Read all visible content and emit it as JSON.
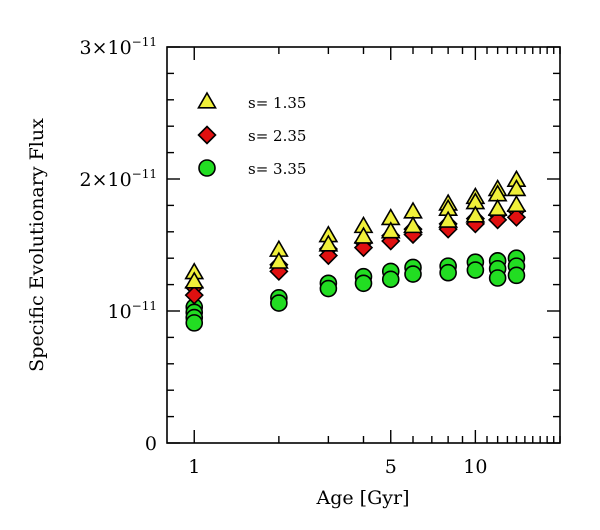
{
  "chart_data": {
    "type": "scatter",
    "xlabel": "Age [Gyr]",
    "ylabel": "Specific Evolutionary Flux",
    "x_scale": "log",
    "xlim": [
      0.8,
      20
    ],
    "ylim": [
      0,
      3e-11
    ],
    "grid": false,
    "legend_position": "top-left",
    "xticks": [
      {
        "value": 1,
        "label": "1"
      },
      {
        "value": 5,
        "label": "5"
      },
      {
        "value": 10,
        "label": "10"
      }
    ],
    "yticks": [
      {
        "value": 0,
        "mantissa": "0",
        "exponent": ""
      },
      {
        "value": 1e-11,
        "mantissa": "10",
        "exponent": "−11"
      },
      {
        "value": 2e-11,
        "mantissa": "2×10",
        "exponent": "−11"
      },
      {
        "value": 3e-11,
        "mantissa": "3×10",
        "exponent": "−11"
      }
    ],
    "series": [
      {
        "name": "s= 1.35",
        "marker": "triangle",
        "color": "#f0f03a",
        "points": [
          [
            1,
            1.29e-11
          ],
          [
            1,
            1.22e-11
          ],
          [
            2,
            1.46e-11
          ],
          [
            2,
            1.37e-11
          ],
          [
            3,
            1.57e-11
          ],
          [
            3,
            1.5e-11
          ],
          [
            4,
            1.64e-11
          ],
          [
            4,
            1.56e-11
          ],
          [
            5,
            1.7e-11
          ],
          [
            5,
            1.6e-11
          ],
          [
            6,
            1.75e-11
          ],
          [
            6,
            1.64e-11
          ],
          [
            8,
            1.81e-11
          ],
          [
            8,
            1.77e-11
          ],
          [
            8,
            1.68e-11
          ],
          [
            10,
            1.86e-11
          ],
          [
            10,
            1.82e-11
          ],
          [
            10,
            1.72e-11
          ],
          [
            12,
            1.92e-11
          ],
          [
            12,
            1.88e-11
          ],
          [
            12,
            1.77e-11
          ],
          [
            14,
            1.99e-11
          ],
          [
            14,
            1.92e-11
          ],
          [
            14,
            1.8e-11
          ]
        ]
      },
      {
        "name": "s= 2.35",
        "marker": "diamond",
        "color": "#e01010",
        "points": [
          [
            1,
            1.18e-11
          ],
          [
            1,
            1.12e-11
          ],
          [
            2,
            1.35e-11
          ],
          [
            2,
            1.3e-11
          ],
          [
            3,
            1.47e-11
          ],
          [
            3,
            1.42e-11
          ],
          [
            4,
            1.52e-11
          ],
          [
            4,
            1.48e-11
          ],
          [
            5,
            1.57e-11
          ],
          [
            5,
            1.53e-11
          ],
          [
            6,
            1.62e-11
          ],
          [
            6,
            1.58e-11
          ],
          [
            8,
            1.66e-11
          ],
          [
            8,
            1.62e-11
          ],
          [
            10,
            1.7e-11
          ],
          [
            10,
            1.66e-11
          ],
          [
            12,
            1.73e-11
          ],
          [
            12,
            1.69e-11
          ],
          [
            14,
            1.76e-11
          ],
          [
            14,
            1.71e-11
          ]
        ]
      },
      {
        "name": "s= 3.35",
        "marker": "circle",
        "color": "#22dd22",
        "points": [
          [
            1,
            1.03e-11
          ],
          [
            1,
            9.9e-12
          ],
          [
            1,
            9.5e-12
          ],
          [
            1,
            9.1e-12
          ],
          [
            2,
            1.1e-11
          ],
          [
            2,
            1.06e-11
          ],
          [
            3,
            1.21e-11
          ],
          [
            3,
            1.17e-11
          ],
          [
            4,
            1.26e-11
          ],
          [
            4,
            1.21e-11
          ],
          [
            5,
            1.3e-11
          ],
          [
            5,
            1.24e-11
          ],
          [
            6,
            1.33e-11
          ],
          [
            6,
            1.28e-11
          ],
          [
            8,
            1.34e-11
          ],
          [
            8,
            1.29e-11
          ],
          [
            10,
            1.37e-11
          ],
          [
            10,
            1.31e-11
          ],
          [
            12,
            1.38e-11
          ],
          [
            12,
            1.32e-11
          ],
          [
            12,
            1.25e-11
          ],
          [
            14,
            1.4e-11
          ],
          [
            14,
            1.34e-11
          ],
          [
            14,
            1.27e-11
          ]
        ]
      }
    ]
  }
}
